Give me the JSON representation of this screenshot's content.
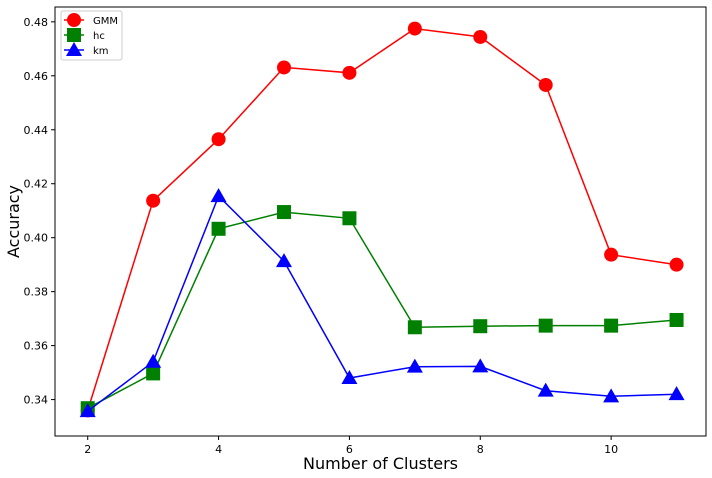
{
  "chart_data": {
    "type": "line",
    "title": "",
    "xlabel": "Number of Clusters",
    "ylabel": "Accuracy",
    "xlim": [
      1.5,
      11.45
    ],
    "ylim": [
      0.3265,
      0.4855
    ],
    "x_ticks": [
      2,
      4,
      6,
      8,
      10
    ],
    "y_ticks": [
      0.34,
      0.36,
      0.38,
      0.4,
      0.42,
      0.44,
      0.46,
      0.48
    ],
    "grid": false,
    "legend_position": "top-left",
    "series": [
      {
        "name": "GMM",
        "color": "#ff0000",
        "marker": "circle",
        "x": [
          2,
          3,
          4,
          5,
          6,
          7,
          8,
          9,
          10,
          11
        ],
        "values": [
          0.336,
          0.4137,
          0.4365,
          0.4631,
          0.4611,
          0.4775,
          0.4744,
          0.4566,
          0.3937,
          0.39
        ]
      },
      {
        "name": "hc",
        "color": "#008000",
        "marker": "square",
        "x": [
          2,
          3,
          4,
          5,
          6,
          7,
          8,
          9,
          10,
          11
        ],
        "values": [
          0.3368,
          0.3497,
          0.4033,
          0.4095,
          0.4072,
          0.3668,
          0.3672,
          0.3674,
          0.3674,
          0.3695
        ]
      },
      {
        "name": "km",
        "color": "#0000ff",
        "marker": "triangle",
        "x": [
          2,
          3,
          4,
          5,
          6,
          7,
          8,
          9,
          10,
          11
        ],
        "values": [
          0.3357,
          0.354,
          0.4154,
          0.3913,
          0.348,
          0.3522,
          0.3523,
          0.3433,
          0.3412,
          0.342
        ]
      }
    ]
  }
}
